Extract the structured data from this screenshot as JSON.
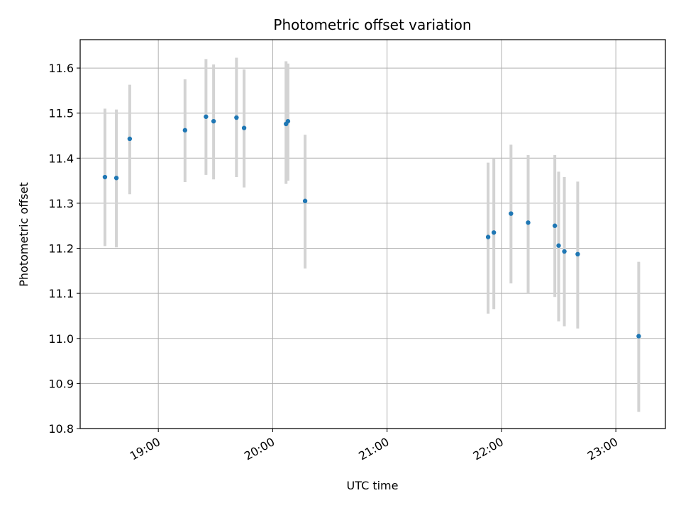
{
  "chart_data": {
    "type": "scatter",
    "title": "Photometric offset variation",
    "xlabel": "UTC time",
    "ylabel": "Photometric offset",
    "x_unit": "UTC time (HH:MM)",
    "xlim": [
      "18:19",
      "23:26"
    ],
    "ylim": [
      10.8,
      11.663
    ],
    "x_ticks": [
      "19:00",
      "20:00",
      "21:00",
      "22:00",
      "23:00"
    ],
    "y_ticks": [
      "10.8",
      "10.9",
      "11.0",
      "11.1",
      "11.2",
      "11.3",
      "11.4",
      "11.5",
      "11.6"
    ],
    "grid": true,
    "colors": {
      "point": "#1f77b4",
      "errorbar": "#d3d3d3",
      "grid": "#b0b0b0"
    },
    "points": [
      {
        "x": "18:32",
        "y": 11.358,
        "err_low": 11.205,
        "err_high": 11.51
      },
      {
        "x": "18:38",
        "y": 11.356,
        "err_low": 11.202,
        "err_high": 11.508
      },
      {
        "x": "18:45",
        "y": 11.443,
        "err_low": 11.32,
        "err_high": 11.563
      },
      {
        "x": "19:14",
        "y": 11.462,
        "err_low": 11.347,
        "err_high": 11.575
      },
      {
        "x": "19:25",
        "y": 11.492,
        "err_low": 11.363,
        "err_high": 11.62
      },
      {
        "x": "19:29",
        "y": 11.482,
        "err_low": 11.353,
        "err_high": 11.608
      },
      {
        "x": "19:41",
        "y": 11.49,
        "err_low": 11.358,
        "err_high": 11.623
      },
      {
        "x": "19:45",
        "y": 11.467,
        "err_low": 11.335,
        "err_high": 11.597
      },
      {
        "x": "20:07",
        "y": 11.476,
        "err_low": 11.343,
        "err_high": 11.615
      },
      {
        "x": "20:08",
        "y": 11.482,
        "err_low": 11.35,
        "err_high": 11.61
      },
      {
        "x": "20:17",
        "y": 11.305,
        "err_low": 11.155,
        "err_high": 11.452
      },
      {
        "x": "21:53",
        "y": 11.225,
        "err_low": 11.055,
        "err_high": 11.39
      },
      {
        "x": "21:56",
        "y": 11.235,
        "err_low": 11.065,
        "err_high": 11.4
      },
      {
        "x": "22:05",
        "y": 11.277,
        "err_low": 11.122,
        "err_high": 11.43
      },
      {
        "x": "22:14",
        "y": 11.257,
        "err_low": 11.1,
        "err_high": 11.407
      },
      {
        "x": "22:28",
        "y": 11.25,
        "err_low": 11.092,
        "err_high": 11.407
      },
      {
        "x": "22:30",
        "y": 11.206,
        "err_low": 11.038,
        "err_high": 11.37
      },
      {
        "x": "22:33",
        "y": 11.193,
        "err_low": 11.027,
        "err_high": 11.358
      },
      {
        "x": "22:40",
        "y": 11.187,
        "err_low": 11.022,
        "err_high": 11.348
      },
      {
        "x": "23:12",
        "y": 11.005,
        "err_low": 10.837,
        "err_high": 11.17
      }
    ]
  }
}
